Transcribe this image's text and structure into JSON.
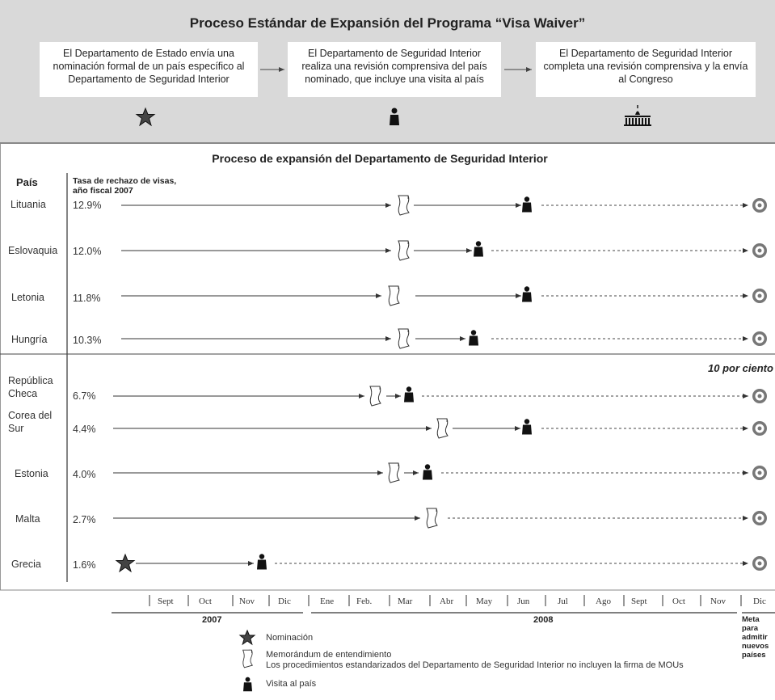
{
  "title": "Proceso Estándar de Expansión del Programa “Visa Waiver”",
  "steps": [
    {
      "text": "El Departamento de Estado envía una nominación formal de un país específico al Departamento de Seguridad Interior",
      "icon": "star-icon"
    },
    {
      "text": "El Departamento de Seguridad Interior realiza una revisión comprensiva del país nominado, que incluye una visita al país",
      "icon": "person-icon"
    },
    {
      "text": "El Departamento de Seguridad Interior completa una revisión comprensiva y la envía al Congreso",
      "icon": "capitol-icon"
    }
  ],
  "section_title": "Proceso de expansión del Departamento de Seguridad Interior",
  "headers": {
    "country": "País",
    "rate": "Tasa de rechazo de visas, año fiscal 2007"
  },
  "threshold_label": "10 por ciento",
  "timeline": {
    "months": [
      "Sept",
      "Oct",
      "Nov",
      "Dic",
      "Ene",
      "Feb.",
      "Mar",
      "Abr",
      "May",
      "Jun",
      "Jul",
      "Ago",
      "Sept",
      "Oct",
      "Nov",
      "Dic"
    ],
    "years": [
      "2007",
      "2008"
    ],
    "goal_label": "Meta para admitir nuevos países"
  },
  "countries": [
    {
      "name": "Lituania",
      "rate": "12.9%",
      "mou": "Mar",
      "visit": "Jun"
    },
    {
      "name": "Eslovaquia",
      "rate": "12.0%",
      "mou": "Mar",
      "visit": "May"
    },
    {
      "name": "Letonia",
      "rate": "11.8%",
      "mou": "Mar",
      "visit": "Jun"
    },
    {
      "name": "Hungría",
      "rate": "10.3%",
      "mou": "Mar",
      "visit": "May"
    },
    {
      "name": "República Checa",
      "rate": "6.7%",
      "mou": "Feb.",
      "visit": "Mar"
    },
    {
      "name": "Corea del Sur",
      "rate": "4.4%",
      "mou": "Abr",
      "visit": "Jun"
    },
    {
      "name": "Estonia",
      "rate": "4.0%",
      "mou": "Mar",
      "visit": "Mar"
    },
    {
      "name": "Malta",
      "rate": "2.7%",
      "mou": "Abr",
      "visit": ""
    },
    {
      "name": "Grecia",
      "rate": "1.6%",
      "mou": "",
      "visit": "Nov",
      "nomination": "Sept"
    }
  ],
  "legend": {
    "nomination": "Nominación",
    "mou_title": "Memorándum de entendimiento",
    "mou_note": "Los procedimientos estandarizados del Departamento de Seguridad Interior no incluyen la firma de MOUs",
    "visit": "Visita al país"
  }
}
